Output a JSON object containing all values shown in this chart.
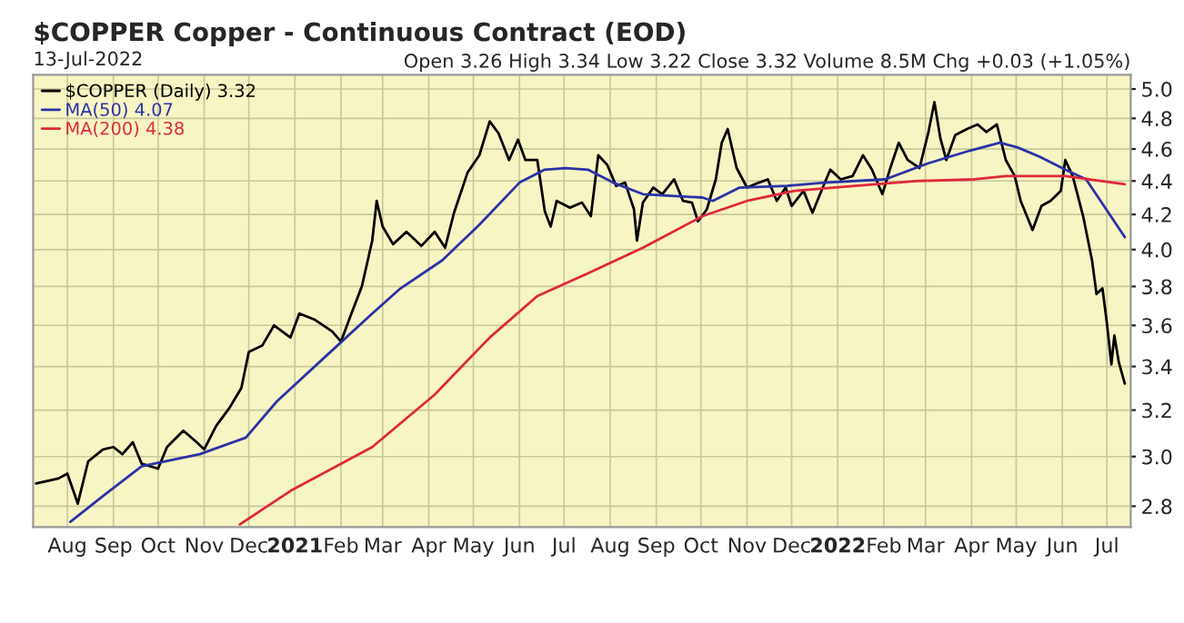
{
  "chart_data": {
    "type": "line",
    "title": "$COPPER Copper - Continuous Contract (EOD)",
    "subtitle": "13-Jul-2022",
    "annotations": [
      "Open 3.26 High 3.34 Low 3.22 Close 3.32 Volume 8.5M Chg +0.03 (+1.05%)"
    ],
    "log": "y",
    "grid": true,
    "legend": "top left",
    "xlim": [
      "2020-07-09",
      "2022-07-17"
    ],
    "xticks": [
      {
        "value": "2020-08-01",
        "label": "Aug"
      },
      {
        "value": "2020-09-01",
        "label": "Sep"
      },
      {
        "value": "2020-10-01",
        "label": "Oct"
      },
      {
        "value": "2020-11-01",
        "label": "Nov"
      },
      {
        "value": "2020-12-01",
        "label": "Dec"
      },
      {
        "value": "2021-01-01",
        "label": "2021"
      },
      {
        "value": "2021-02-01",
        "label": "Feb"
      },
      {
        "value": "2021-03-01",
        "label": "Mar"
      },
      {
        "value": "2021-04-01",
        "label": "Apr"
      },
      {
        "value": "2021-05-01",
        "label": "May"
      },
      {
        "value": "2021-06-01",
        "label": "Jun"
      },
      {
        "value": "2021-07-01",
        "label": "Jul"
      },
      {
        "value": "2021-08-01",
        "label": "Aug"
      },
      {
        "value": "2021-09-01",
        "label": "Sep"
      },
      {
        "value": "2021-10-01",
        "label": "Oct"
      },
      {
        "value": "2021-11-01",
        "label": "Nov"
      },
      {
        "value": "2021-12-01",
        "label": "Dec"
      },
      {
        "value": "2022-01-01",
        "label": "2022"
      },
      {
        "value": "2022-02-01",
        "label": "Feb"
      },
      {
        "value": "2022-03-01",
        "label": "Mar"
      },
      {
        "value": "2022-04-01",
        "label": "Apr"
      },
      {
        "value": "2022-05-01",
        "label": "May"
      },
      {
        "value": "2022-06-01",
        "label": "Jun"
      },
      {
        "value": "2022-07-01",
        "label": "Jul"
      }
    ],
    "ylim": [
      2.72,
      5.1
    ],
    "yticks": [
      {
        "value": 2.8,
        "label": "2.8"
      },
      {
        "value": 3.0,
        "label": "3.0"
      },
      {
        "value": 3.2,
        "label": "3.2"
      },
      {
        "value": 3.4,
        "label": "3.4"
      },
      {
        "value": 3.6,
        "label": "3.6"
      },
      {
        "value": 3.8,
        "label": "3.8"
      },
      {
        "value": 4.0,
        "label": "4.0"
      },
      {
        "value": 4.2,
        "label": "4.2"
      },
      {
        "value": 4.4,
        "label": "4.4"
      },
      {
        "value": 4.6,
        "label": "4.6"
      },
      {
        "value": 4.8,
        "label": "4.8"
      },
      {
        "value": 5.0,
        "label": "5.0"
      }
    ],
    "series": [
      {
        "name": "$COPPER (Daily) 3.32",
        "color": "#000000",
        "x": [
          "2020-07-11",
          "2020-07-26",
          "2020-08-01",
          "2020-08-08",
          "2020-08-15",
          "2020-08-25",
          "2020-09-01",
          "2020-09-07",
          "2020-09-14",
          "2020-09-20",
          "2020-10-01",
          "2020-10-07",
          "2020-10-18",
          "2020-10-27",
          "2020-11-01",
          "2020-11-09",
          "2020-11-18",
          "2020-11-26",
          "2020-12-01",
          "2020-12-10",
          "2020-12-18",
          "2020-12-29",
          "2021-01-04",
          "2021-01-14",
          "2021-01-26",
          "2021-02-01",
          "2021-02-08",
          "2021-02-15",
          "2021-02-22",
          "2021-02-25",
          "2021-03-01",
          "2021-03-08",
          "2021-03-17",
          "2021-03-27",
          "2021-04-05",
          "2021-04-12",
          "2021-04-18",
          "2021-04-27",
          "2021-05-05",
          "2021-05-12",
          "2021-05-18",
          "2021-05-25",
          "2021-05-31",
          "2021-06-05",
          "2021-06-13",
          "2021-06-18",
          "2021-06-22",
          "2021-06-26",
          "2021-07-05",
          "2021-07-13",
          "2021-07-19",
          "2021-07-24",
          "2021-07-30",
          "2021-08-05",
          "2021-08-11",
          "2021-08-17",
          "2021-08-19",
          "2021-08-23",
          "2021-08-30",
          "2021-09-05",
          "2021-09-13",
          "2021-09-19",
          "2021-09-25",
          "2021-09-29",
          "2021-10-05",
          "2021-10-11",
          "2021-10-15",
          "2021-10-19",
          "2021-10-25",
          "2021-11-01",
          "2021-11-09",
          "2021-11-15",
          "2021-11-21",
          "2021-11-27",
          "2021-12-01",
          "2021-12-09",
          "2021-12-15",
          "2021-12-21",
          "2021-12-27",
          "2022-01-03",
          "2022-01-11",
          "2022-01-18",
          "2022-01-24",
          "2022-01-31",
          "2022-02-05",
          "2022-02-11",
          "2022-02-17",
          "2022-02-25",
          "2022-03-03",
          "2022-03-07",
          "2022-03-11",
          "2022-03-15",
          "2022-03-21",
          "2022-03-29",
          "2022-04-05",
          "2022-04-11",
          "2022-04-18",
          "2022-04-24",
          "2022-04-30",
          "2022-05-04",
          "2022-05-12",
          "2022-05-18",
          "2022-05-24",
          "2022-05-31",
          "2022-06-03",
          "2022-06-08",
          "2022-06-15",
          "2022-06-21",
          "2022-06-24",
          "2022-06-28",
          "2022-07-01",
          "2022-07-04",
          "2022-07-06",
          "2022-07-09",
          "2022-07-13"
        ],
        "values": [
          2.89,
          2.91,
          2.93,
          2.81,
          2.98,
          3.03,
          3.04,
          3.01,
          3.06,
          2.97,
          2.95,
          3.04,
          3.11,
          3.06,
          3.03,
          3.13,
          3.21,
          3.3,
          3.47,
          3.5,
          3.6,
          3.54,
          3.66,
          3.63,
          3.57,
          3.52,
          3.66,
          3.8,
          4.05,
          4.28,
          4.13,
          4.03,
          4.1,
          4.02,
          4.1,
          4.01,
          4.21,
          4.45,
          4.56,
          4.78,
          4.7,
          4.53,
          4.66,
          4.53,
          4.53,
          4.22,
          4.13,
          4.28,
          4.24,
          4.27,
          4.19,
          4.56,
          4.5,
          4.37,
          4.39,
          4.23,
          4.05,
          4.27,
          4.36,
          4.32,
          4.41,
          4.28,
          4.27,
          4.16,
          4.23,
          4.41,
          4.64,
          4.73,
          4.48,
          4.36,
          4.39,
          4.41,
          4.28,
          4.36,
          4.25,
          4.34,
          4.21,
          4.34,
          4.47,
          4.41,
          4.43,
          4.56,
          4.47,
          4.32,
          4.47,
          4.64,
          4.53,
          4.48,
          4.71,
          4.91,
          4.67,
          4.53,
          4.69,
          4.73,
          4.76,
          4.71,
          4.76,
          4.53,
          4.43,
          4.28,
          4.11,
          4.25,
          4.28,
          4.34,
          4.53,
          4.43,
          4.19,
          3.94,
          3.76,
          3.79,
          3.61,
          3.41,
          3.55,
          3.42,
          3.32
        ]
      },
      {
        "name": "MA(50) 4.07",
        "color": "#2a32a8",
        "x": [
          "2020-08-03",
          "2020-08-25",
          "2020-09-20",
          "2020-10-29",
          "2020-11-29",
          "2020-12-20",
          "2021-01-28",
          "2021-02-22",
          "2021-03-13",
          "2021-04-10",
          "2021-05-05",
          "2021-06-01",
          "2021-06-18",
          "2021-07-02",
          "2021-07-17",
          "2021-08-03",
          "2021-08-23",
          "2021-10-02",
          "2021-10-09",
          "2021-10-27",
          "2021-11-28",
          "2021-12-23",
          "2022-02-02",
          "2022-03-03",
          "2022-03-31",
          "2022-04-20",
          "2022-05-02",
          "2022-05-17",
          "2022-06-03",
          "2022-06-17",
          "2022-06-29",
          "2022-07-13"
        ],
        "values": [
          2.74,
          2.84,
          2.96,
          3.01,
          3.08,
          3.24,
          3.49,
          3.66,
          3.79,
          3.94,
          4.14,
          4.39,
          4.47,
          4.48,
          4.47,
          4.39,
          4.32,
          4.3,
          4.28,
          4.36,
          4.37,
          4.39,
          4.41,
          4.51,
          4.59,
          4.64,
          4.61,
          4.55,
          4.47,
          4.41,
          4.25,
          4.07
        ]
      },
      {
        "name": "MA(200) 4.38",
        "color": "#e0283c",
        "x": [
          "2020-11-25",
          "2020-12-29",
          "2021-02-22",
          "2021-04-05",
          "2021-05-12",
          "2021-06-13",
          "2021-07-17",
          "2021-08-23",
          "2021-10-02",
          "2021-11-01",
          "2021-12-03",
          "2022-01-13",
          "2022-02-23",
          "2022-04-03",
          "2022-04-24",
          "2022-06-03",
          "2022-07-13"
        ],
        "values": [
          2.73,
          2.86,
          3.04,
          3.27,
          3.54,
          3.75,
          3.87,
          4.01,
          4.19,
          4.28,
          4.34,
          4.37,
          4.4,
          4.41,
          4.43,
          4.43,
          4.38
        ]
      }
    ]
  }
}
